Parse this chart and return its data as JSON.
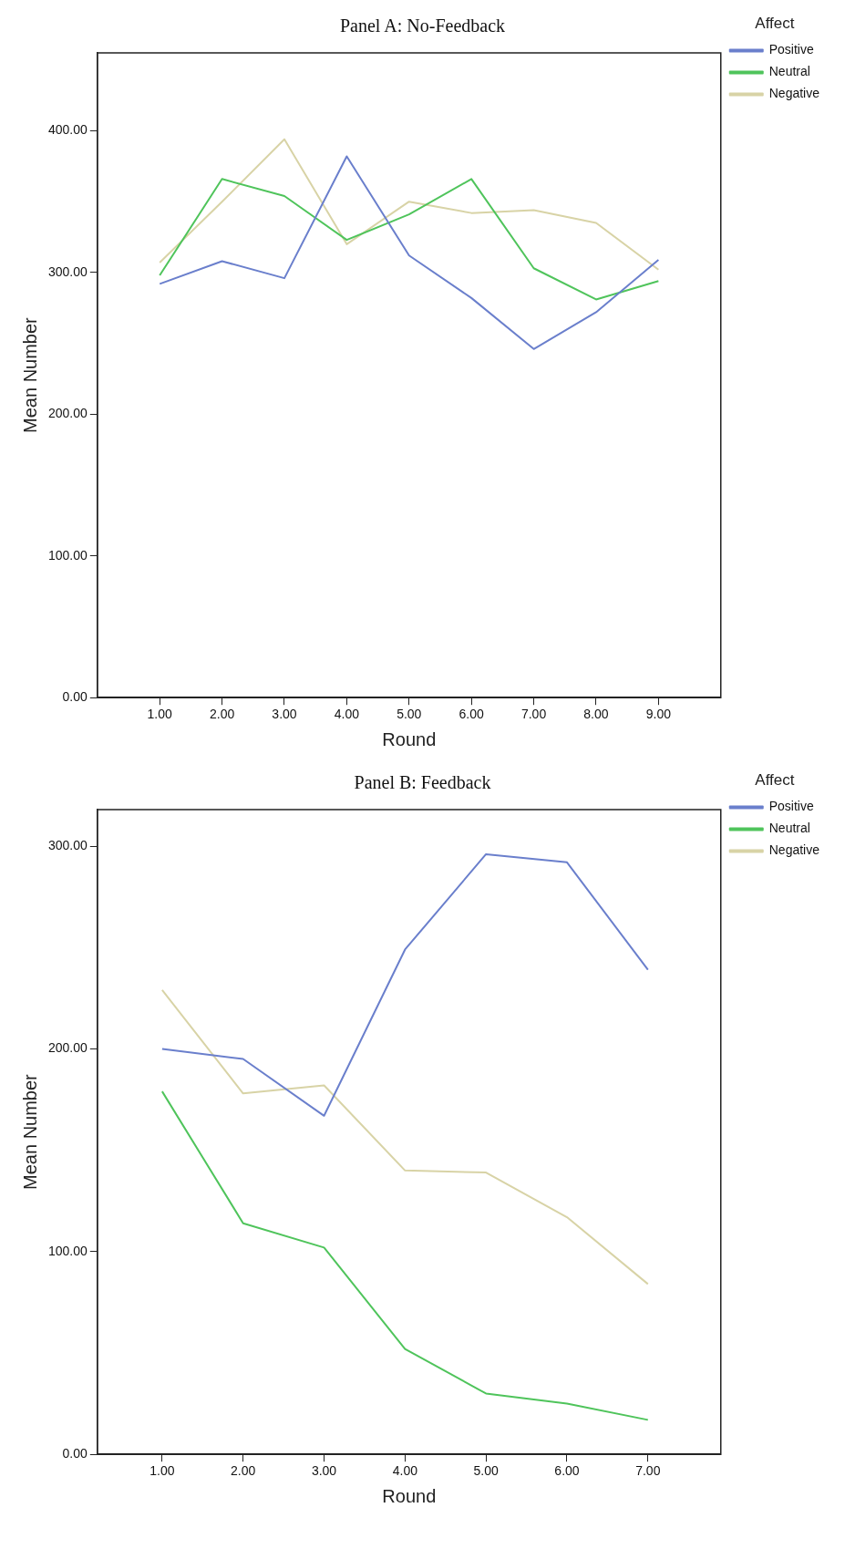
{
  "chart_data": [
    {
      "type": "line",
      "title": "Panel A: No-Feedback",
      "xlabel": "Round",
      "ylabel": "Mean Number",
      "legend_title": "Affect",
      "legend": "top right",
      "grid": false,
      "x": [
        1,
        2,
        3,
        4,
        5,
        6,
        7,
        8,
        9
      ],
      "xlim": [
        0,
        10
      ],
      "xticks": [
        {
          "value": 1,
          "label": "1.00"
        },
        {
          "value": 2,
          "label": "2.00"
        },
        {
          "value": 3,
          "label": "3.00"
        },
        {
          "value": 4,
          "label": "4.00"
        },
        {
          "value": 5,
          "label": "5.00"
        },
        {
          "value": 6,
          "label": "6.00"
        },
        {
          "value": 7,
          "label": "7.00"
        },
        {
          "value": 8,
          "label": "8.00"
        },
        {
          "value": 9,
          "label": "9.00"
        }
      ],
      "ylim": [
        0,
        455
      ],
      "yticks": [
        {
          "value": 0,
          "label": "0.00"
        },
        {
          "value": 100,
          "label": "100.00"
        },
        {
          "value": 200,
          "label": "200.00"
        },
        {
          "value": 300,
          "label": "300.00"
        },
        {
          "value": 400,
          "label": "400.00"
        }
      ],
      "series": [
        {
          "name": "Positive",
          "color": "#6a7fcc",
          "values": [
            292,
            308,
            296,
            382,
            312,
            282,
            246,
            272,
            309
          ]
        },
        {
          "name": "Neutral",
          "color": "#4fc45b",
          "values": [
            298,
            366,
            354,
            323,
            341,
            366,
            303,
            281,
            294
          ]
        },
        {
          "name": "Negative",
          "color": "#d8d3a6",
          "values": [
            307,
            350,
            394,
            320,
            350,
            342,
            344,
            335,
            302
          ]
        }
      ]
    },
    {
      "type": "line",
      "title": "Panel B: Feedback",
      "xlabel": "Round",
      "ylabel": "Mean Number",
      "legend_title": "Affect",
      "legend": "top right",
      "grid": false,
      "x": [
        1,
        2,
        3,
        4,
        5,
        6,
        7
      ],
      "xlim": [
        0.2,
        7.9
      ],
      "xticks": [
        {
          "value": 1,
          "label": "1.00"
        },
        {
          "value": 2,
          "label": "2.00"
        },
        {
          "value": 3,
          "label": "3.00"
        },
        {
          "value": 4,
          "label": "4.00"
        },
        {
          "value": 5,
          "label": "5.00"
        },
        {
          "value": 6,
          "label": "6.00"
        },
        {
          "value": 7,
          "label": "7.00"
        }
      ],
      "ylim": [
        0,
        318
      ],
      "yticks": [
        {
          "value": 0,
          "label": "0.00"
        },
        {
          "value": 100,
          "label": "100.00"
        },
        {
          "value": 200,
          "label": "200.00"
        },
        {
          "value": 300,
          "label": "300.00"
        }
      ],
      "series": [
        {
          "name": "Positive",
          "color": "#6a7fcc",
          "values": [
            200,
            195,
            167,
            249,
            296,
            292,
            239
          ]
        },
        {
          "name": "Neutral",
          "color": "#4fc45b",
          "values": [
            179,
            114,
            102,
            52,
            30,
            25,
            17
          ]
        },
        {
          "name": "Negative",
          "color": "#d8d3a6",
          "values": [
            229,
            178,
            182,
            140,
            139,
            117,
            84
          ]
        }
      ]
    }
  ]
}
